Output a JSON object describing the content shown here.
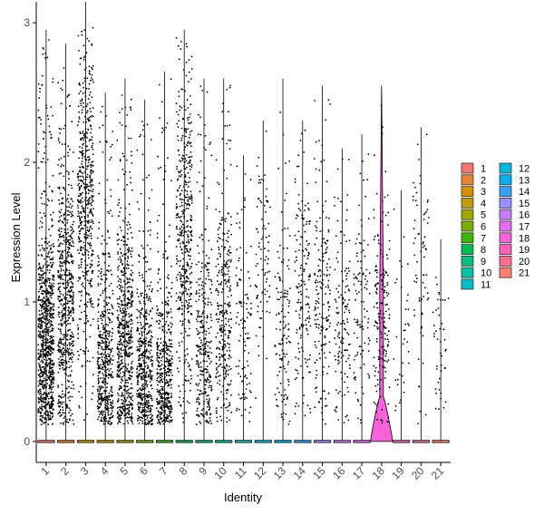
{
  "chart_data": {
    "type": "violin",
    "title": "",
    "xlabel": "Identity",
    "ylabel": "Expression Level",
    "ylim": [
      -0.15,
      3.15
    ],
    "yticks": [
      0,
      1,
      2,
      3
    ],
    "grid": false,
    "legend_position": "right",
    "legend_columns": 2,
    "categories": [
      "1",
      "2",
      "3",
      "4",
      "5",
      "6",
      "7",
      "8",
      "9",
      "10",
      "11",
      "12",
      "13",
      "14",
      "15",
      "16",
      "17",
      "18",
      "19",
      "20",
      "21"
    ],
    "colors": [
      "#F8766D",
      "#EA8331",
      "#D89000",
      "#C09B00",
      "#A3A500",
      "#7CAE00",
      "#39B600",
      "#00BB4E",
      "#00BF7D",
      "#00C1A3",
      "#00BFC4",
      "#00BAE0",
      "#00B0F6",
      "#35A2FF",
      "#9590FF",
      "#C77CFF",
      "#E76BF3",
      "#FA62DB",
      "#FF62BC",
      "#FF6C91",
      "#FF7F6E"
    ],
    "series": [
      {
        "name": "1",
        "max": 2.95,
        "density": 1.0,
        "center": 0.7,
        "spread": 0.55,
        "upper": 2.9
      },
      {
        "name": "2",
        "max": 2.85,
        "density": 0.7,
        "center": 0.95,
        "spread": 0.7,
        "upper": 2.8
      },
      {
        "name": "3",
        "max": 3.15,
        "density": 0.6,
        "center": 1.7,
        "spread": 0.75,
        "upper": 3.0
      },
      {
        "name": "4",
        "max": 2.5,
        "density": 0.55,
        "center": 0.55,
        "spread": 0.55,
        "upper": 2.4
      },
      {
        "name": "5",
        "max": 2.6,
        "density": 0.7,
        "center": 0.7,
        "spread": 0.6,
        "upper": 2.5
      },
      {
        "name": "6",
        "max": 2.45,
        "density": 0.55,
        "center": 0.5,
        "spread": 0.5,
        "upper": 2.3
      },
      {
        "name": "7",
        "max": 2.65,
        "density": 0.5,
        "center": 0.45,
        "spread": 0.45,
        "upper": 2.6
      },
      {
        "name": "8",
        "max": 2.95,
        "density": 0.5,
        "center": 1.5,
        "spread": 0.8,
        "upper": 2.9
      },
      {
        "name": "9",
        "max": 2.6,
        "density": 0.35,
        "center": 0.7,
        "spread": 0.6,
        "upper": 2.55
      },
      {
        "name": "10",
        "max": 2.6,
        "density": 0.35,
        "center": 0.85,
        "spread": 0.6,
        "upper": 2.55
      },
      {
        "name": "11",
        "max": 2.05,
        "density": 0.12,
        "center": 0.8,
        "spread": 0.6,
        "upper": 2.0
      },
      {
        "name": "12",
        "max": 2.3,
        "density": 0.1,
        "center": 1.4,
        "spread": 0.6,
        "upper": 2.25
      },
      {
        "name": "13",
        "max": 2.6,
        "density": 0.15,
        "center": 0.8,
        "spread": 0.6,
        "upper": 2.4
      },
      {
        "name": "14",
        "max": 2.3,
        "density": 0.18,
        "center": 1.1,
        "spread": 0.65,
        "upper": 2.25
      },
      {
        "name": "15",
        "max": 2.55,
        "density": 0.2,
        "center": 1.0,
        "spread": 0.7,
        "upper": 2.5
      },
      {
        "name": "16",
        "max": 2.1,
        "density": 0.15,
        "center": 0.9,
        "spread": 0.6,
        "upper": 2.05
      },
      {
        "name": "17",
        "max": 2.2,
        "density": 0.12,
        "center": 1.0,
        "spread": 0.6,
        "upper": 2.15
      },
      {
        "name": "18",
        "max": 2.55,
        "density": 0.2,
        "center": 0.9,
        "spread": 0.6,
        "upper": 2.5
      },
      {
        "name": "19",
        "max": 1.8,
        "density": 0.04,
        "center": 0.8,
        "spread": 0.5,
        "upper": 1.75
      },
      {
        "name": "20",
        "max": 2.25,
        "density": 0.08,
        "center": 1.2,
        "spread": 0.6,
        "upper": 2.2
      },
      {
        "name": "21",
        "max": 1.45,
        "density": 0.05,
        "center": 0.7,
        "spread": 0.4,
        "upper": 1.4
      }
    ]
  }
}
